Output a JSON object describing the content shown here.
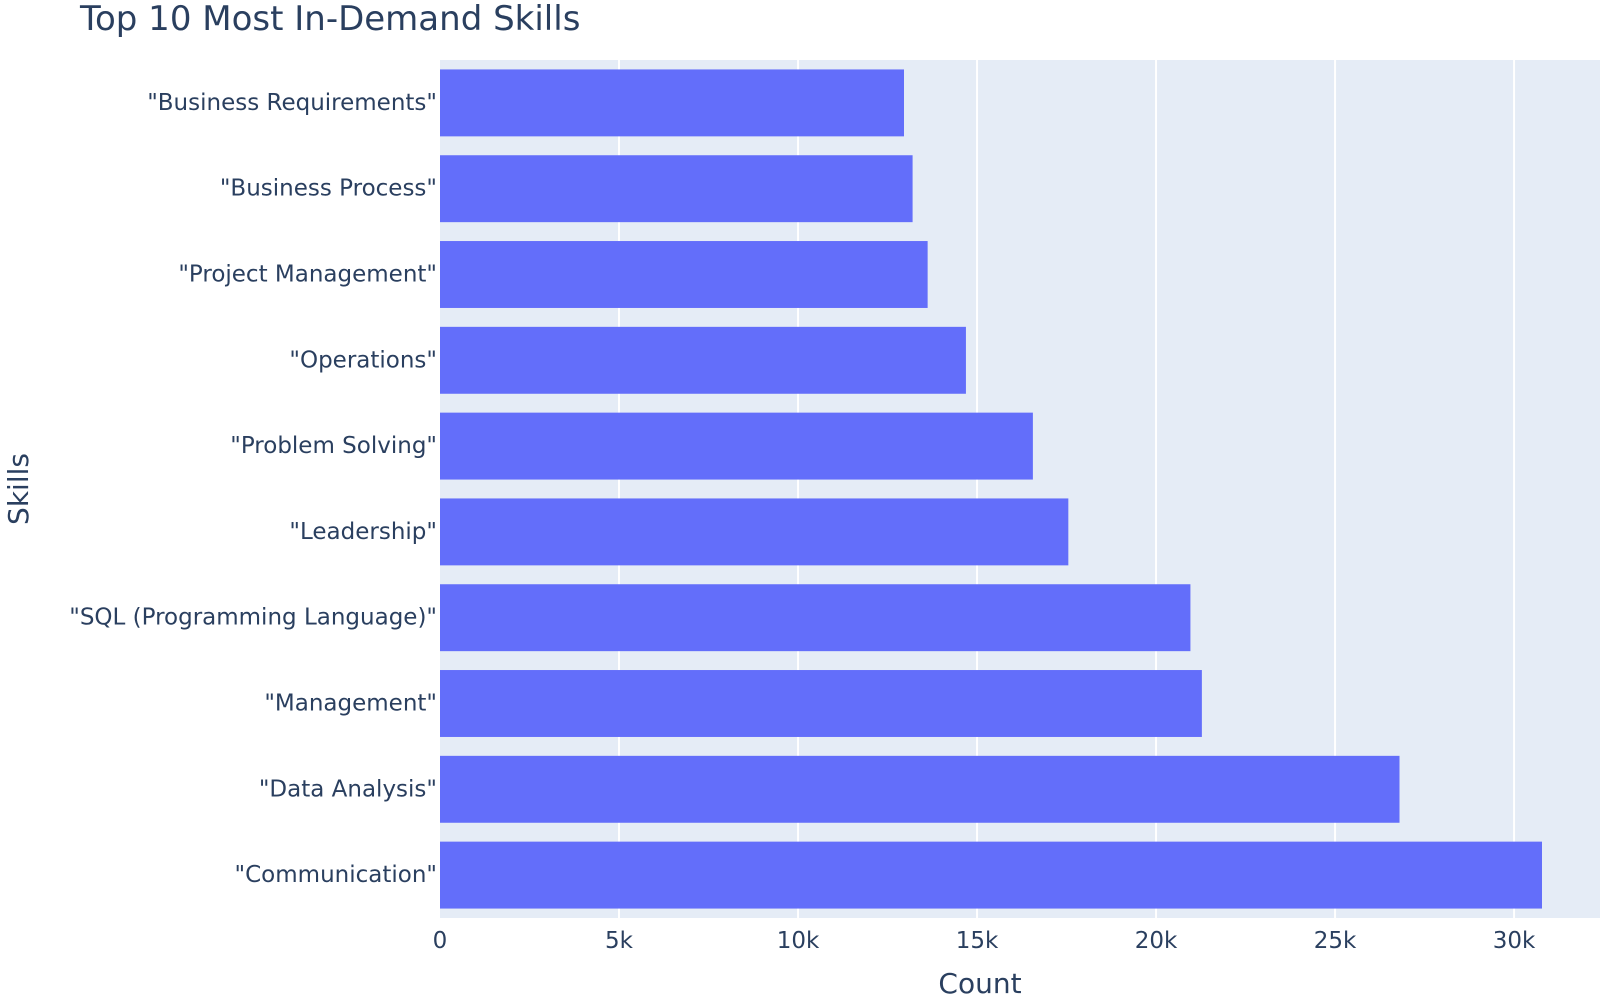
{
  "chart_data": {
    "type": "bar",
    "orientation": "horizontal",
    "title": "Top 10 Most In-Demand Skills",
    "xlabel": "Count",
    "ylabel": "Skills",
    "categories": [
      "\"Business Requirements\"",
      "\"Business Process\"",
      "\"Project Management\"",
      "\"Operations\"",
      "\"Problem Solving\"",
      "\"Leadership\"",
      "\"SQL (Programming Language)\"",
      "\"Management\"",
      "\"Data Analysis\"",
      "\"Communication\""
    ],
    "values": [
      12960,
      13200,
      13620,
      14690,
      16560,
      17550,
      20960,
      21280,
      26800,
      30780
    ],
    "xlim": [
      0,
      32400
    ],
    "xticks": [
      0,
      5000,
      10000,
      15000,
      20000,
      25000,
      30000
    ],
    "xtick_labels": [
      "0",
      "5k",
      "10k",
      "15k",
      "20k",
      "25k",
      "30k"
    ],
    "grid": true,
    "legend": "none",
    "colors": {
      "bar": "#636efa",
      "plot_background": "#e5ecf6",
      "grid": "#ffffff",
      "text": "#2a3f5f"
    }
  }
}
